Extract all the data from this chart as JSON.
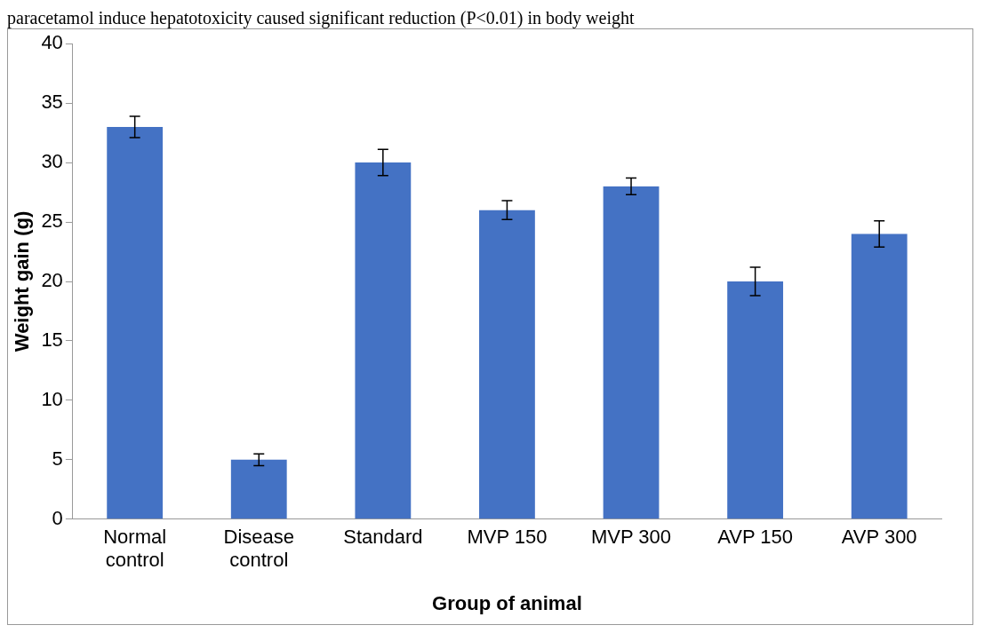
{
  "chart_data": {
    "type": "bar",
    "annotations": [
      "paracetamol induce hepatotoxicity caused significant reduction (P<0.01) in body weight"
    ],
    "xlabel": "Group of animal",
    "ylabel": "Weight gain (g)",
    "categories": [
      "Normal control",
      "Disease control",
      "Standard",
      "MVP 150",
      "MVP 300",
      "AVP 150",
      "AVP 300"
    ],
    "values": [
      33,
      5,
      30,
      26,
      28,
      20,
      24
    ],
    "errors": [
      0.9,
      0.5,
      1.1,
      0.8,
      0.7,
      1.2,
      1.1
    ],
    "color": "#4472c4",
    "ylim": [
      0,
      40
    ],
    "yticks": [
      0,
      5,
      10,
      15,
      20,
      25,
      30,
      35,
      40
    ],
    "grid": false,
    "legend": false
  }
}
